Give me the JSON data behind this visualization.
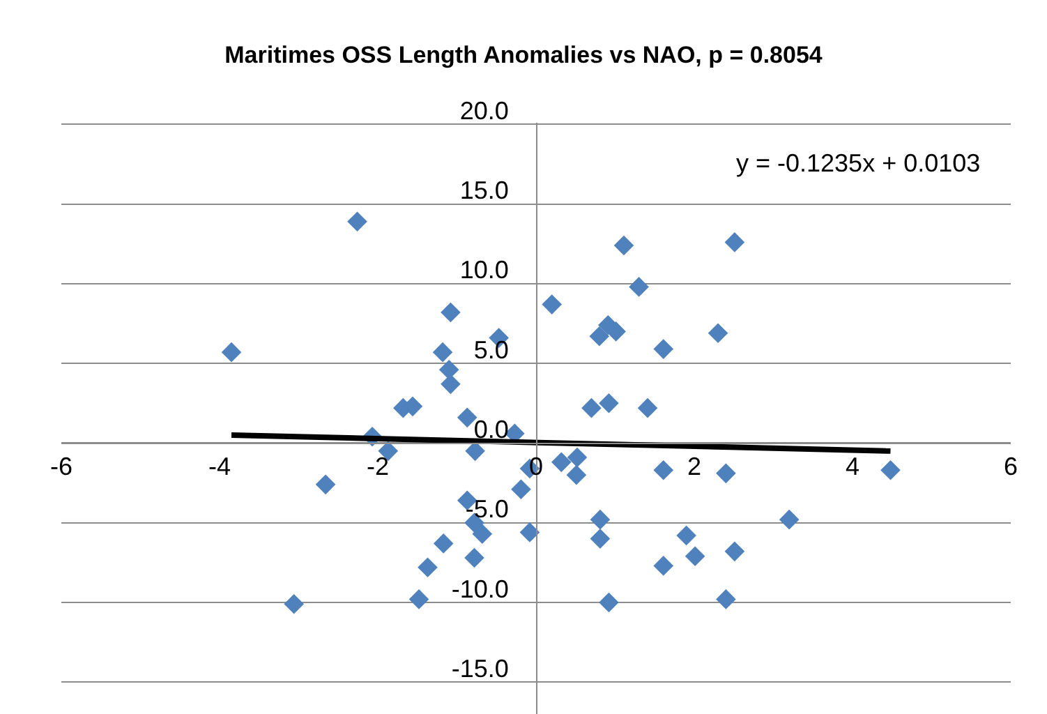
{
  "chart_data": {
    "type": "scatter",
    "title": "Maritimes OSS Length Anomalies vs NAO, p = 0.8054",
    "xlim": [
      -6,
      6
    ],
    "xticks": [
      -6,
      -4,
      -2,
      0,
      2,
      4,
      6
    ],
    "ylim": [
      -17,
      20.1
    ],
    "yticks": [
      {
        "value": -15,
        "label": "-15.0"
      },
      {
        "value": -10,
        "label": "-10.0"
      },
      {
        "value": -5,
        "label": "-5.0"
      },
      {
        "value": 0,
        "label": "0.0"
      },
      {
        "value": 5,
        "label": "5.0"
      },
      {
        "value": 10,
        "label": "10.0"
      },
      {
        "value": 15,
        "label": "15.0"
      },
      {
        "value": 20,
        "label": "20.0"
      }
    ],
    "grid": "y",
    "marker": "diamond",
    "annotations": [
      "y = -0.1235x + 0.0103"
    ],
    "series": [
      {
        "color": "#4f81bd",
        "x": [
          -2.26,
          -3.85,
          -1.08,
          -0.47,
          -1.18,
          -1.1,
          -1.08,
          -1.68,
          -1.56,
          -0.87,
          -2.07,
          -0.27,
          -1.87,
          -0.77,
          -2.66,
          -0.08,
          -0.19,
          -0.87,
          -0.78,
          -0.68,
          -0.08,
          -1.17,
          -0.78,
          -1.37,
          -1.48,
          -3.06,
          0.32,
          0.2,
          1.11,
          2.51,
          1.3,
          0.8,
          0.91,
          1.01,
          2.3,
          1.61,
          0.7,
          0.92,
          1.41,
          0.52,
          0.51,
          1.61,
          2.4,
          4.48,
          0.81,
          0.81,
          3.2,
          1.9,
          2.01,
          2.51,
          1.61,
          0.92,
          2.4
        ],
        "values": [
          13.9,
          5.7,
          8.2,
          6.6,
          5.7,
          4.6,
          3.7,
          2.2,
          2.3,
          1.6,
          0.4,
          0.6,
          -0.5,
          -0.5,
          -2.6,
          -1.6,
          -2.9,
          -3.6,
          -5.0,
          -5.7,
          -5.6,
          -6.3,
          -7.2,
          -7.8,
          -9.8,
          -10.1,
          -1.2,
          8.7,
          12.4,
          12.6,
          9.8,
          6.7,
          7.4,
          7.0,
          6.9,
          5.9,
          2.2,
          2.5,
          2.2,
          -0.9,
          -2.0,
          -1.7,
          -1.9,
          -1.7,
          -4.8,
          -6.0,
          -4.8,
          -5.8,
          -7.1,
          -6.8,
          -7.7,
          -10.0,
          -9.8
        ]
      },
      {
        "type": "line",
        "marker": "none",
        "color": "#000000",
        "x": [
          -3.85,
          4.48
        ],
        "values": [
          0.5,
          -0.5
        ]
      }
    ]
  }
}
